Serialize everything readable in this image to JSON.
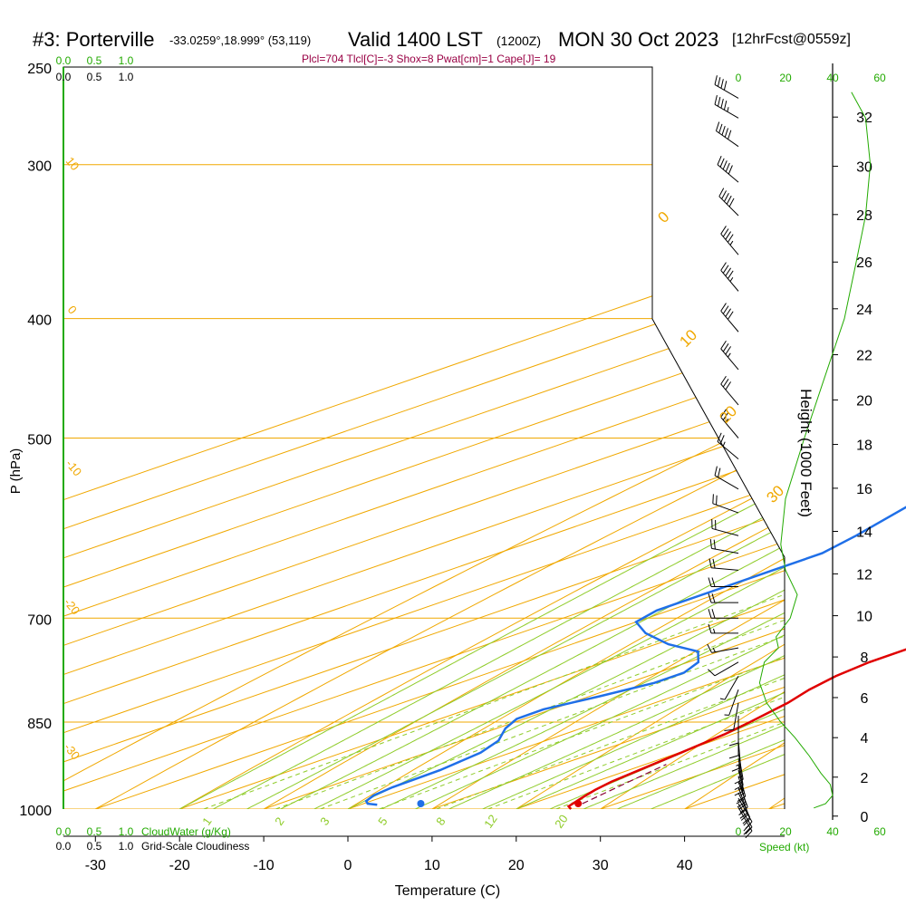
{
  "header": {
    "site": "#3: Porterville",
    "coords": "-33.0259°,18.999° (53,119)",
    "valid": "Valid 1400 LST",
    "utc": "(1200Z)",
    "date": "MON 30 Oct 2023",
    "forecast": "[12hrFcst@0559z]",
    "params": "Plcl=704 Tlcl[C]=-3 Shox=8 Pwat[cm]=1 Cape[J]= 19"
  },
  "colors": {
    "temperature": "#e00000",
    "dewpoint": "#1f6fe8",
    "isotherm": "#f0a800",
    "dry_adiabat": "#f0a800",
    "moist_adiabat": "#8fcc2a",
    "mixing_ratio": "#8fcc2a",
    "cloud_axis": "#22aa00",
    "parcel": "#880033",
    "params_text": "#990044"
  },
  "chart_data": {
    "type": "skew-t",
    "xlabel": "Temperature (C)",
    "ylabel": "P (hPa)",
    "right_axis_label": "Height (1000 Feet)",
    "x_ticks": [
      -30,
      -20,
      -10,
      0,
      10,
      20,
      30,
      40
    ],
    "pressure_ticks": [
      250,
      300,
      400,
      500,
      700,
      850,
      1000
    ],
    "height_ticks": [
      0,
      2,
      4,
      6,
      8,
      10,
      12,
      14,
      16,
      18,
      20,
      22,
      24,
      26,
      28,
      30,
      32
    ],
    "xlim": [
      -34,
      36
    ],
    "plim": [
      250,
      1000
    ],
    "grid": true,
    "temperature_profile": [
      {
        "p": 1000,
        "t": 26.5
      },
      {
        "p": 995,
        "t": 25.3
      },
      {
        "p": 980,
        "t": 24.0
      },
      {
        "p": 965,
        "t": 22.8
      },
      {
        "p": 950,
        "t": 21.9
      },
      {
        "p": 935,
        "t": 21.4
      },
      {
        "p": 900,
        "t": 20.2
      },
      {
        "p": 870,
        "t": 19.1
      },
      {
        "p": 850,
        "t": 17.9
      },
      {
        "p": 820,
        "t": 15.8
      },
      {
        "p": 800,
        "t": 13.8
      },
      {
        "p": 780,
        "t": 12.3
      },
      {
        "p": 760,
        "t": 11.5
      },
      {
        "p": 740,
        "t": 11.5
      },
      {
        "p": 720,
        "t": 12.0
      },
      {
        "p": 700,
        "t": 11.8
      },
      {
        "p": 680,
        "t": 10.2
      },
      {
        "p": 660,
        "t": 8.0
      },
      {
        "p": 640,
        "t": 5.8
      },
      {
        "p": 620,
        "t": 4.3
      },
      {
        "p": 600,
        "t": 2.8
      },
      {
        "p": 570,
        "t": 0.4
      },
      {
        "p": 550,
        "t": -1.5
      },
      {
        "p": 500,
        "t": -6.0
      },
      {
        "p": 450,
        "t": -11.5
      },
      {
        "p": 400,
        "t": -17.8
      },
      {
        "p": 370,
        "t": -21.0
      },
      {
        "p": 350,
        "t": -24.5
      },
      {
        "p": 320,
        "t": -29.5
      },
      {
        "p": 300,
        "t": -33.0
      },
      {
        "p": 280,
        "t": -36.5
      },
      {
        "p": 270,
        "t": -38.0
      },
      {
        "p": 262,
        "t": -38.2
      }
    ],
    "dewpoint_profile": [
      {
        "p": 992,
        "t": 2.0
      },
      {
        "p": 990,
        "t": 0.5
      },
      {
        "p": 985,
        "t": -0.6
      },
      {
        "p": 975,
        "t": -1.6
      },
      {
        "p": 960,
        "t": -2.2
      },
      {
        "p": 930,
        "t": -2.4
      },
      {
        "p": 900,
        "t": -3.6
      },
      {
        "p": 880,
        "t": -5.6
      },
      {
        "p": 860,
        "t": -9.0
      },
      {
        "p": 845,
        "t": -10.9
      },
      {
        "p": 830,
        "t": -11.0
      },
      {
        "p": 810,
        "t": -8.8
      },
      {
        "p": 790,
        "t": -6.9
      },
      {
        "p": 775,
        "t": -6.9
      },
      {
        "p": 760,
        "t": -8.8
      },
      {
        "p": 745,
        "t": -12.5
      },
      {
        "p": 735,
        "t": -18.5
      },
      {
        "p": 720,
        "t": -25.0
      },
      {
        "p": 705,
        "t": -30.0
      },
      {
        "p": 690,
        "t": -31.5
      },
      {
        "p": 660,
        "t": -31.5
      },
      {
        "p": 640,
        "t": -31.5
      },
      {
        "p": 620,
        "t": -31.5
      },
      {
        "p": 600,
        "t": -33.5
      },
      {
        "p": 560,
        "t": -38.5
      },
      {
        "p": 500,
        "t": -44.5
      },
      {
        "p": 480,
        "t": -47.0
      },
      {
        "p": 450,
        "t": -49.0
      },
      {
        "p": 400,
        "t": -52.5
      },
      {
        "p": 360,
        "t": -55.0
      },
      {
        "p": 330,
        "t": -56.0
      },
      {
        "p": 300,
        "t": -57.0
      },
      {
        "p": 285,
        "t": -57.8
      },
      {
        "p": 270,
        "t": -58.2
      },
      {
        "p": 262,
        "t": -58.5
      }
    ],
    "parcel_dashed": [
      {
        "p": 990,
        "t": 26.0
      },
      {
        "p": 950,
        "t": 24.0
      },
      {
        "p": 920,
        "t": 22.5
      }
    ],
    "surface_temperature_marker": {
      "p": 1000,
      "t": 26.5
    },
    "surface_dewpoint_marker": {
      "p": 1000,
      "t": 7.8
    },
    "isotherm_labels": [
      0,
      10,
      20,
      30
    ],
    "dry_adiabat_labels": [
      10,
      0,
      -10,
      -20,
      -30
    ],
    "mixing_ratio_labels": [
      "1",
      "2",
      "3",
      "5",
      "8",
      "12",
      "20"
    ],
    "cloud_water_axis": {
      "label": "CloudWater (g/Kg)",
      "ticks": [
        "0.0",
        "0.5",
        "1.0"
      ]
    },
    "cloudiness_axis": {
      "label": "Grid-Scale Cloudiness",
      "ticks": [
        "0.0",
        "0.5",
        "1.0"
      ]
    },
    "speed_axis": {
      "label": "Speed (kt)",
      "ticks": [
        0,
        20,
        40,
        60
      ]
    },
    "wind_speed_profile": [
      {
        "p": 998,
        "s": 32
      },
      {
        "p": 990,
        "s": 37
      },
      {
        "p": 975,
        "s": 40
      },
      {
        "p": 955,
        "s": 39
      },
      {
        "p": 935,
        "s": 35
      },
      {
        "p": 905,
        "s": 30
      },
      {
        "p": 875,
        "s": 24
      },
      {
        "p": 850,
        "s": 18
      },
      {
        "p": 820,
        "s": 12
      },
      {
        "p": 790,
        "s": 9
      },
      {
        "p": 760,
        "s": 11
      },
      {
        "p": 740,
        "s": 17
      },
      {
        "p": 725,
        "s": 16
      },
      {
        "p": 700,
        "s": 22
      },
      {
        "p": 670,
        "s": 25
      },
      {
        "p": 640,
        "s": 20
      },
      {
        "p": 610,
        "s": 18
      },
      {
        "p": 560,
        "s": 20
      },
      {
        "p": 500,
        "s": 28
      },
      {
        "p": 450,
        "s": 36
      },
      {
        "p": 400,
        "s": 45
      },
      {
        "p": 360,
        "s": 50
      },
      {
        "p": 330,
        "s": 54
      },
      {
        "p": 300,
        "s": 56
      },
      {
        "p": 275,
        "s": 54
      },
      {
        "p": 262,
        "s": 48
      }
    ],
    "wind_barbs": [
      {
        "p": 997,
        "dir": 150,
        "spd": 20
      },
      {
        "p": 990,
        "dir": 150,
        "spd": 20
      },
      {
        "p": 980,
        "dir": 150,
        "spd": 20
      },
      {
        "p": 970,
        "dir": 155,
        "spd": 20
      },
      {
        "p": 960,
        "dir": 160,
        "spd": 20
      },
      {
        "p": 950,
        "dir": 160,
        "spd": 20
      },
      {
        "p": 940,
        "dir": 165,
        "spd": 20
      },
      {
        "p": 930,
        "dir": 165,
        "spd": 15
      },
      {
        "p": 920,
        "dir": 170,
        "spd": 15
      },
      {
        "p": 910,
        "dir": 170,
        "spd": 15
      },
      {
        "p": 900,
        "dir": 170,
        "spd": 15
      },
      {
        "p": 880,
        "dir": 175,
        "spd": 15
      },
      {
        "p": 860,
        "dir": 180,
        "spd": 10
      },
      {
        "p": 840,
        "dir": 180,
        "spd": 10
      },
      {
        "p": 820,
        "dir": 190,
        "spd": 10
      },
      {
        "p": 800,
        "dir": 200,
        "spd": 5
      },
      {
        "p": 780,
        "dir": 210,
        "spd": 5
      },
      {
        "p": 760,
        "dir": 240,
        "spd": 10
      },
      {
        "p": 740,
        "dir": 260,
        "spd": 15
      },
      {
        "p": 720,
        "dir": 270,
        "spd": 15
      },
      {
        "p": 700,
        "dir": 270,
        "spd": 20
      },
      {
        "p": 680,
        "dir": 270,
        "spd": 20
      },
      {
        "p": 660,
        "dir": 270,
        "spd": 20
      },
      {
        "p": 640,
        "dir": 275,
        "spd": 20
      },
      {
        "p": 620,
        "dir": 280,
        "spd": 20
      },
      {
        "p": 600,
        "dir": 285,
        "spd": 20
      },
      {
        "p": 575,
        "dir": 290,
        "spd": 20
      },
      {
        "p": 550,
        "dir": 300,
        "spd": 20
      },
      {
        "p": 520,
        "dir": 310,
        "spd": 25
      },
      {
        "p": 500,
        "dir": 320,
        "spd": 25
      },
      {
        "p": 470,
        "dir": 320,
        "spd": 30
      },
      {
        "p": 440,
        "dir": 320,
        "spd": 35
      },
      {
        "p": 410,
        "dir": 320,
        "spd": 40
      },
      {
        "p": 380,
        "dir": 320,
        "spd": 45
      },
      {
        "p": 355,
        "dir": 320,
        "spd": 45
      },
      {
        "p": 330,
        "dir": 315,
        "spd": 50
      },
      {
        "p": 310,
        "dir": 310,
        "spd": 50
      },
      {
        "p": 290,
        "dir": 305,
        "spd": 50
      },
      {
        "p": 275,
        "dir": 300,
        "spd": 45
      },
      {
        "p": 265,
        "dir": 300,
        "spd": 40
      }
    ]
  }
}
